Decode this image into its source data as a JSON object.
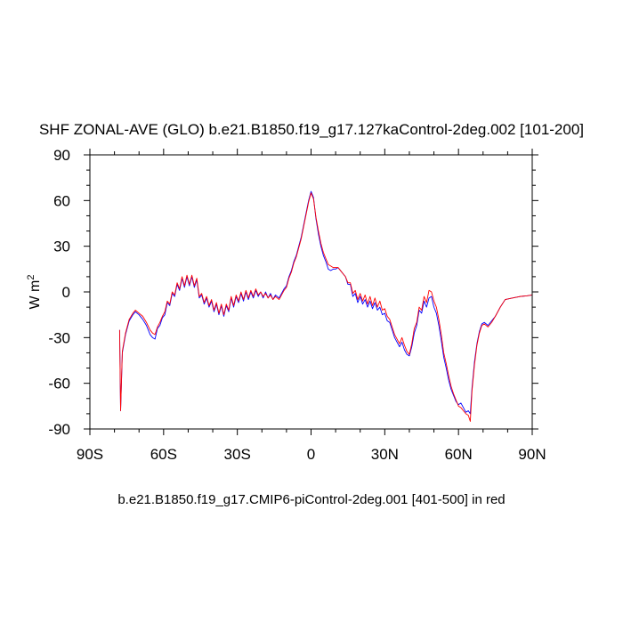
{
  "chart_data": {
    "type": "line",
    "title": "SHF ZONAL-AVE (GLO) b.e21.B1850.f19_g17.127kaControl-2deg.002 [101-200]",
    "subtitle": "b.e21.B1850.f19_g17.CMIP6-piControl-2deg.001 [401-500] in red",
    "xlabel": "",
    "ylabel": "W m",
    "ylabel_superscript": "2",
    "xlim": [
      -90,
      90
    ],
    "ylim": [
      -90,
      90
    ],
    "x_ticks": [
      {
        "value": -90,
        "label": "90S"
      },
      {
        "value": -60,
        "label": "60S"
      },
      {
        "value": -30,
        "label": "30S"
      },
      {
        "value": 0,
        "label": "0"
      },
      {
        "value": 30,
        "label": "30N"
      },
      {
        "value": 60,
        "label": "60N"
      },
      {
        "value": 90,
        "label": "90N"
      }
    ],
    "y_ticks": [
      {
        "value": 90,
        "label": "90"
      },
      {
        "value": 60,
        "label": "60"
      },
      {
        "value": 30,
        "label": "30"
      },
      {
        "value": 0,
        "label": "0"
      },
      {
        "value": -30,
        "label": "-30"
      },
      {
        "value": -60,
        "label": "-60"
      },
      {
        "value": -90,
        "label": "-90"
      }
    ],
    "grid": false,
    "series": [
      {
        "color": "#0000ff",
        "points": [
          [
            -77.9,
            -25
          ],
          [
            -77.5,
            -78
          ],
          [
            -76.8,
            -40
          ],
          [
            -75.5,
            -28
          ],
          [
            -74,
            -19
          ],
          [
            -72.5,
            -15
          ],
          [
            -71.5,
            -13
          ],
          [
            -70,
            -15
          ],
          [
            -68.5,
            -18
          ],
          [
            -67,
            -22
          ],
          [
            -65.5,
            -28
          ],
          [
            -64.5,
            -30
          ],
          [
            -63.5,
            -31
          ],
          [
            -62.5,
            -24
          ],
          [
            -61.5,
            -22
          ],
          [
            -60.5,
            -17
          ],
          [
            -59.5,
            -15
          ],
          [
            -58.5,
            -7
          ],
          [
            -57.5,
            -9
          ],
          [
            -56.5,
            -1
          ],
          [
            -55.5,
            -3
          ],
          [
            -54.5,
            5
          ],
          [
            -53.5,
            1
          ],
          [
            -52.5,
            9
          ],
          [
            -51.5,
            3
          ],
          [
            -50.5,
            10
          ],
          [
            -49.5,
            4
          ],
          [
            -48.5,
            10
          ],
          [
            -47.5,
            3
          ],
          [
            -46.5,
            8
          ],
          [
            -45.5,
            -4
          ],
          [
            -44.5,
            -2
          ],
          [
            -43.5,
            -8
          ],
          [
            -42.5,
            -4
          ],
          [
            -41.5,
            -10
          ],
          [
            -40.5,
            -6
          ],
          [
            -39.5,
            -13
          ],
          [
            -38.5,
            -8
          ],
          [
            -37.5,
            -15
          ],
          [
            -36.5,
            -9
          ],
          [
            -35.5,
            -16
          ],
          [
            -34.5,
            -9
          ],
          [
            -33.5,
            -13
          ],
          [
            -32.5,
            -4
          ],
          [
            -31.5,
            -10
          ],
          [
            -30.5,
            -3
          ],
          [
            -29.5,
            -7
          ],
          [
            -28.5,
            -1
          ],
          [
            -27.5,
            -6
          ],
          [
            -26.5,
            0
          ],
          [
            -25.5,
            -5
          ],
          [
            -24.5,
            0
          ],
          [
            -23.5,
            -4
          ],
          [
            -22.5,
            1
          ],
          [
            -21.5,
            -3
          ],
          [
            -20.5,
            0
          ],
          [
            -19.5,
            -4
          ],
          [
            -18.5,
            0
          ],
          [
            -17.5,
            -4
          ],
          [
            -16.5,
            -1
          ],
          [
            -15.5,
            -5
          ],
          [
            -14.5,
            -2
          ],
          [
            -13,
            -4
          ],
          [
            -12,
            -1
          ],
          [
            -11,
            2
          ],
          [
            -10,
            4
          ],
          [
            -9,
            10
          ],
          [
            -8,
            14
          ],
          [
            -7,
            20
          ],
          [
            -6,
            24
          ],
          [
            -5,
            30
          ],
          [
            -4,
            36
          ],
          [
            -3,
            44
          ],
          [
            -2,
            52
          ],
          [
            -1,
            60
          ],
          [
            0,
            66
          ],
          [
            1,
            62
          ],
          [
            2,
            48
          ],
          [
            3,
            38
          ],
          [
            4,
            30
          ],
          [
            5,
            24
          ],
          [
            6,
            20
          ],
          [
            7,
            15
          ],
          [
            8,
            14
          ],
          [
            9,
            15
          ],
          [
            10,
            15
          ],
          [
            11,
            16
          ],
          [
            12,
            14
          ],
          [
            13,
            12
          ],
          [
            14,
            10
          ],
          [
            15,
            5
          ],
          [
            16,
            5
          ],
          [
            17,
            -3
          ],
          [
            18,
            -1
          ],
          [
            19,
            -7
          ],
          [
            20,
            -3
          ],
          [
            21,
            -8
          ],
          [
            22,
            -5
          ],
          [
            23,
            -10
          ],
          [
            24,
            -6
          ],
          [
            25,
            -11
          ],
          [
            26,
            -7
          ],
          [
            27,
            -12
          ],
          [
            28,
            -10
          ],
          [
            29,
            -15
          ],
          [
            30,
            -14
          ],
          [
            31,
            -19
          ],
          [
            32,
            -20
          ],
          [
            33,
            -25
          ],
          [
            34,
            -30
          ],
          [
            35,
            -33
          ],
          [
            36,
            -36
          ],
          [
            37,
            -33
          ],
          [
            38,
            -38
          ],
          [
            39,
            -41
          ],
          [
            40,
            -42
          ],
          [
            41,
            -36
          ],
          [
            42,
            -27
          ],
          [
            43,
            -22
          ],
          [
            44,
            -12
          ],
          [
            45,
            -14
          ],
          [
            46,
            -6
          ],
          [
            47,
            -10
          ],
          [
            48,
            -4
          ],
          [
            49,
            -3
          ],
          [
            50,
            -10
          ],
          [
            51,
            -14
          ],
          [
            52,
            -22
          ],
          [
            53,
            -32
          ],
          [
            54,
            -43
          ],
          [
            55,
            -50
          ],
          [
            56,
            -58
          ],
          [
            57,
            -64
          ],
          [
            58,
            -68
          ],
          [
            59,
            -72
          ],
          [
            60,
            -74
          ],
          [
            61,
            -73
          ],
          [
            62,
            -76
          ],
          [
            63,
            -79
          ],
          [
            64,
            -78
          ],
          [
            64.8,
            -80
          ],
          [
            65.5,
            -63
          ],
          [
            66.5,
            -46
          ],
          [
            67.5,
            -34
          ],
          [
            68.5,
            -26
          ],
          [
            69.5,
            -21
          ],
          [
            70.5,
            -20
          ],
          [
            72,
            -22
          ],
          [
            73.5,
            -19
          ],
          [
            75,
            -16
          ],
          [
            77,
            -10
          ],
          [
            79,
            -5
          ],
          [
            82,
            -4
          ],
          [
            85,
            -3
          ],
          [
            88,
            -2.5
          ],
          [
            90,
            -2
          ]
        ]
      },
      {
        "color": "#ff0000",
        "points": [
          [
            -77.9,
            -25
          ],
          [
            -77.5,
            -78
          ],
          [
            -76.8,
            -39
          ],
          [
            -75.5,
            -27
          ],
          [
            -74,
            -18
          ],
          [
            -72.5,
            -14
          ],
          [
            -71.5,
            -12
          ],
          [
            -70,
            -14
          ],
          [
            -68.5,
            -16
          ],
          [
            -67,
            -20
          ],
          [
            -65.5,
            -25
          ],
          [
            -64.5,
            -27
          ],
          [
            -63.5,
            -28
          ],
          [
            -62.5,
            -23
          ],
          [
            -61.5,
            -20
          ],
          [
            -60.5,
            -16
          ],
          [
            -59.5,
            -13
          ],
          [
            -58.5,
            -6
          ],
          [
            -57.5,
            -8
          ],
          [
            -56.5,
            0
          ],
          [
            -55.5,
            -2
          ],
          [
            -54.5,
            6
          ],
          [
            -53.5,
            2
          ],
          [
            -52.5,
            10
          ],
          [
            -51.5,
            4
          ],
          [
            -50.5,
            11
          ],
          [
            -49.5,
            5
          ],
          [
            -48.5,
            11
          ],
          [
            -47.5,
            4
          ],
          [
            -46.5,
            9
          ],
          [
            -45.5,
            -3
          ],
          [
            -44.5,
            -1
          ],
          [
            -43.5,
            -7
          ],
          [
            -42.5,
            -3
          ],
          [
            -41.5,
            -9
          ],
          [
            -40.5,
            -5
          ],
          [
            -39.5,
            -12
          ],
          [
            -38.5,
            -7
          ],
          [
            -37.5,
            -14
          ],
          [
            -36.5,
            -8
          ],
          [
            -35.5,
            -15
          ],
          [
            -34.5,
            -8
          ],
          [
            -33.5,
            -12
          ],
          [
            -32.5,
            -3
          ],
          [
            -31.5,
            -9
          ],
          [
            -30.5,
            -2
          ],
          [
            -29.5,
            -6
          ],
          [
            -28.5,
            0
          ],
          [
            -27.5,
            -5
          ],
          [
            -26.5,
            1
          ],
          [
            -25.5,
            -4
          ],
          [
            -24.5,
            1
          ],
          [
            -23.5,
            -3
          ],
          [
            -22.5,
            2
          ],
          [
            -21.5,
            -2
          ],
          [
            -20.5,
            0
          ],
          [
            -19.5,
            -3
          ],
          [
            -18.5,
            -1
          ],
          [
            -17.5,
            -4
          ],
          [
            -16.5,
            -2
          ],
          [
            -15.5,
            -5
          ],
          [
            -14.5,
            -3
          ],
          [
            -13,
            -5
          ],
          [
            -12,
            -2
          ],
          [
            -11,
            1
          ],
          [
            -10,
            3
          ],
          [
            -9,
            9
          ],
          [
            -8,
            13
          ],
          [
            -7,
            19
          ],
          [
            -6,
            23
          ],
          [
            -5,
            29
          ],
          [
            -4,
            35
          ],
          [
            -3,
            43
          ],
          [
            -2,
            51
          ],
          [
            -1,
            59
          ],
          [
            0,
            65
          ],
          [
            1,
            61
          ],
          [
            2,
            49
          ],
          [
            3,
            40
          ],
          [
            4,
            32
          ],
          [
            5,
            26
          ],
          [
            6,
            22
          ],
          [
            7,
            18
          ],
          [
            8,
            17
          ],
          [
            9,
            16
          ],
          [
            10,
            16
          ],
          [
            11,
            16
          ],
          [
            12,
            14
          ],
          [
            13,
            12
          ],
          [
            14,
            10
          ],
          [
            15,
            6
          ],
          [
            16,
            6
          ],
          [
            17,
            -1
          ],
          [
            18,
            1
          ],
          [
            19,
            -5
          ],
          [
            20,
            -1
          ],
          [
            21,
            -6
          ],
          [
            22,
            -2
          ],
          [
            23,
            -8
          ],
          [
            24,
            -3
          ],
          [
            25,
            -9
          ],
          [
            26,
            -4
          ],
          [
            27,
            -10
          ],
          [
            28,
            -6
          ],
          [
            29,
            -12
          ],
          [
            30,
            -11
          ],
          [
            31,
            -16
          ],
          [
            32,
            -18
          ],
          [
            33,
            -23
          ],
          [
            34,
            -28
          ],
          [
            35,
            -31
          ],
          [
            36,
            -34
          ],
          [
            37,
            -30
          ],
          [
            38,
            -35
          ],
          [
            39,
            -39
          ],
          [
            40,
            -41
          ],
          [
            41,
            -34
          ],
          [
            42,
            -24
          ],
          [
            43,
            -20
          ],
          [
            44,
            -10
          ],
          [
            45,
            -12
          ],
          [
            46,
            -3
          ],
          [
            47,
            -7
          ],
          [
            48,
            1
          ],
          [
            49,
            0
          ],
          [
            50,
            -6
          ],
          [
            51,
            -10
          ],
          [
            52,
            -18
          ],
          [
            53,
            -28
          ],
          [
            54,
            -40
          ],
          [
            55,
            -47
          ],
          [
            56,
            -55
          ],
          [
            57,
            -62
          ],
          [
            58,
            -67
          ],
          [
            59,
            -71
          ],
          [
            60,
            -75
          ],
          [
            61,
            -76
          ],
          [
            62,
            -78
          ],
          [
            63,
            -80
          ],
          [
            64,
            -81
          ],
          [
            64.8,
            -85
          ],
          [
            65.5,
            -65
          ],
          [
            66.5,
            -48
          ],
          [
            67.5,
            -35
          ],
          [
            68.5,
            -27
          ],
          [
            69.5,
            -22
          ],
          [
            70.5,
            -21
          ],
          [
            72,
            -23
          ],
          [
            73.5,
            -20
          ],
          [
            75,
            -16
          ],
          [
            77,
            -10
          ],
          [
            79,
            -5
          ],
          [
            82,
            -4
          ],
          [
            85,
            -3
          ],
          [
            88,
            -2.5
          ],
          [
            90,
            -2
          ]
        ]
      }
    ]
  }
}
